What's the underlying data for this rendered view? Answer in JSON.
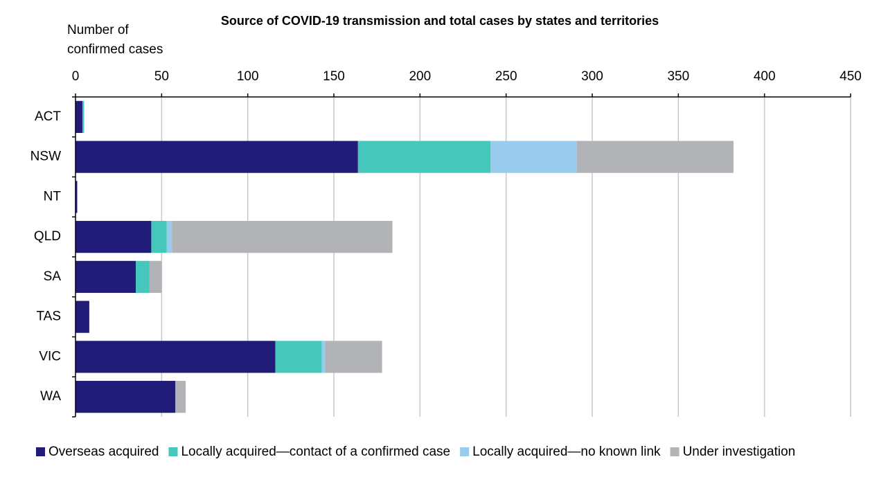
{
  "chart_data": {
    "type": "bar",
    "orientation": "horizontal",
    "stacked": true,
    "title": "Source of COVID-19 transmission and total cases by states and territories",
    "x_label": [
      "Number of",
      "confirmed cases"
    ],
    "categories": [
      "ACT",
      "NSW",
      "NT",
      "QLD",
      "SA",
      "TAS",
      "VIC",
      "WA"
    ],
    "series": [
      {
        "name": "Overseas acquired",
        "color": "#211c77",
        "values": [
          4,
          164,
          1,
          44,
          35,
          8,
          116,
          58
        ]
      },
      {
        "name": "Locally acquired—contact of a confirmed case",
        "color": "#45c8bb",
        "values": [
          1,
          77,
          0,
          9,
          8,
          0,
          27,
          0
        ]
      },
      {
        "name": "Locally acquired—no known link",
        "color": "#99cbec",
        "values": [
          0,
          50,
          0,
          3,
          0,
          0,
          2,
          0
        ]
      },
      {
        "name": "Under investigation",
        "color": "#b1b3b6",
        "values": [
          0,
          91,
          0,
          128,
          7,
          0,
          33,
          6
        ]
      }
    ],
    "xlim": [
      0,
      450
    ],
    "xticks": [
      0,
      50,
      100,
      150,
      200,
      250,
      300,
      350,
      400,
      450
    ],
    "grid": true
  }
}
